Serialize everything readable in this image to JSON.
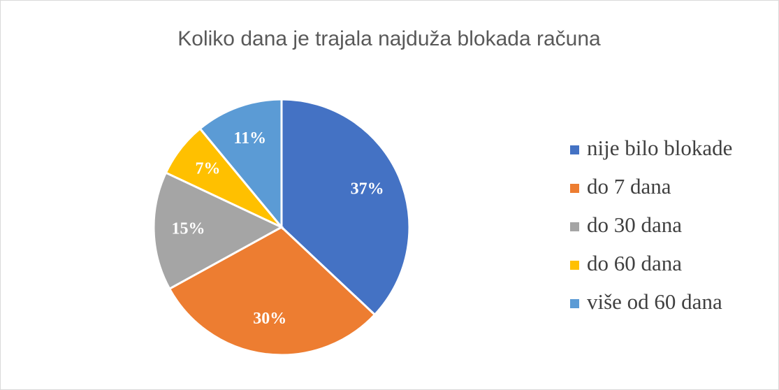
{
  "chart_data": {
    "type": "pie",
    "title": "Koliko dana je trajala najduža blokada računa",
    "categories": [
      "nije bilo blokade",
      "do 7 dana",
      "do 30 dana",
      "do 60 dana",
      "više od 60 dana"
    ],
    "values": [
      37,
      30,
      15,
      7,
      11
    ],
    "value_labels": [
      "37%",
      "30%",
      "15%",
      "7%",
      "11%"
    ],
    "colors": [
      "#4472c4",
      "#ed7d31",
      "#a5a5a5",
      "#ffc000",
      "#5b9bd5"
    ],
    "legend": "right"
  }
}
